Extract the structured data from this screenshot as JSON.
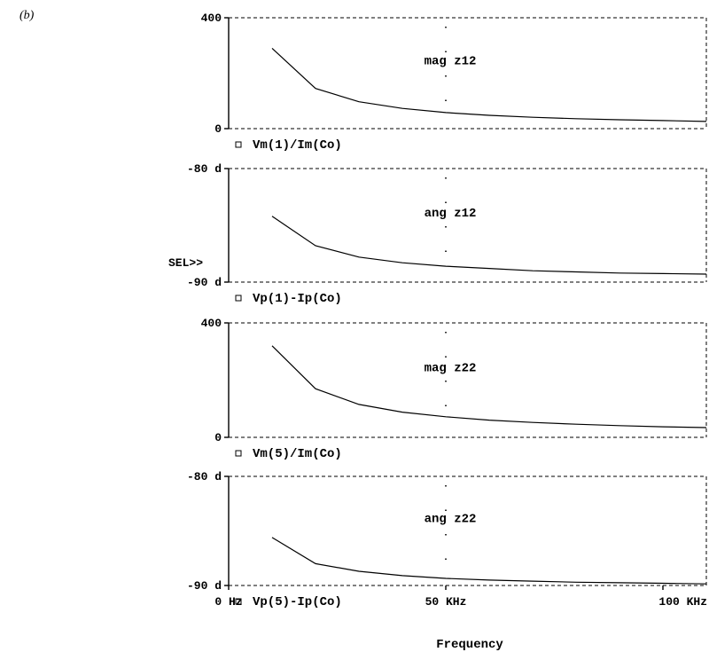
{
  "figure_label": "(b)",
  "selection_marker": "SEL>>",
  "chart_data": [
    {
      "type": "line",
      "annotation": "mag z12",
      "trace_label": "Vm(1)/Im(Co)",
      "ylim": [
        0,
        400
      ],
      "ytick_labels": [
        "400",
        "0"
      ],
      "x": [
        10,
        20,
        30,
        40,
        50,
        60,
        70,
        80,
        90,
        100,
        110
      ],
      "y": [
        290,
        145,
        97,
        73,
        58,
        48,
        41,
        36,
        32,
        29,
        26
      ]
    },
    {
      "type": "line",
      "annotation": "ang z12",
      "trace_label": "Vp(1)-Ip(Co)",
      "ylim": [
        -90,
        -80
      ],
      "ytick_labels": [
        "-80 d",
        "-90 d"
      ],
      "x": [
        10,
        20,
        30,
        40,
        50,
        60,
        70,
        80,
        90,
        100,
        110
      ],
      "y": [
        -84.2,
        -86.8,
        -87.8,
        -88.3,
        -88.6,
        -88.8,
        -89.0,
        -89.1,
        -89.2,
        -89.25,
        -89.3
      ]
    },
    {
      "type": "line",
      "annotation": "mag z22",
      "trace_label": "Vm(5)/Im(Co)",
      "ylim": [
        0,
        400
      ],
      "ytick_labels": [
        "400",
        "0"
      ],
      "x": [
        10,
        20,
        30,
        40,
        50,
        60,
        70,
        80,
        90,
        100,
        110
      ],
      "y": [
        320,
        170,
        115,
        88,
        72,
        60,
        52,
        46,
        41,
        37,
        34
      ]
    },
    {
      "type": "line",
      "annotation": "ang z22",
      "trace_label": "Vp(5)-Ip(Co)",
      "ylim": [
        -90,
        -80
      ],
      "ytick_labels": [
        "-80 d",
        "-90 d"
      ],
      "x": [
        10,
        20,
        30,
        40,
        50,
        60,
        70,
        80,
        90,
        100,
        110
      ],
      "y": [
        -85.6,
        -88.0,
        -88.7,
        -89.1,
        -89.35,
        -89.5,
        -89.6,
        -89.7,
        -89.75,
        -89.8,
        -89.85
      ]
    }
  ],
  "x_axis": {
    "label": "Frequency",
    "xlim": [
      0,
      110
    ],
    "ticks": [
      0,
      50,
      100
    ],
    "tick_labels": [
      "0 Hz",
      "50 KHz",
      "100 KHz"
    ]
  }
}
